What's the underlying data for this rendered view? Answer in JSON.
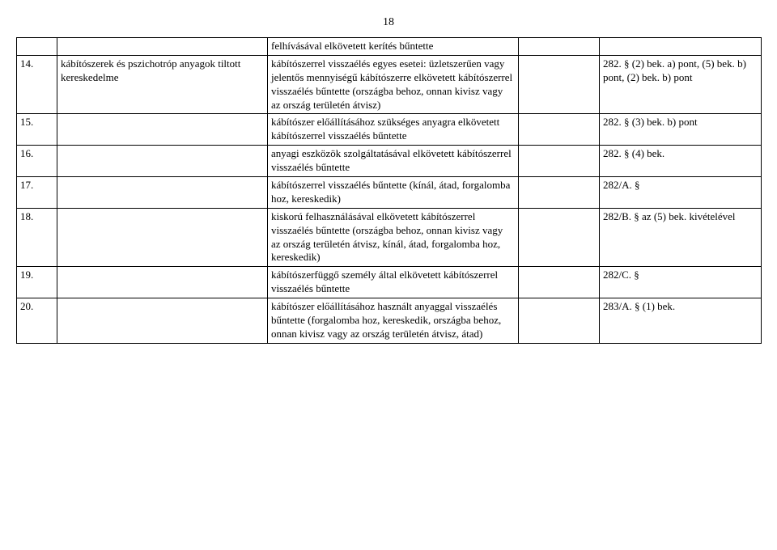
{
  "page_number": "18",
  "rows": [
    {
      "num": "",
      "title": "",
      "main": "felhívásával elkövetett kerítés bűntette",
      "mid": "",
      "ref": ""
    },
    {
      "num": "14.",
      "title": "kábítószerek és pszichotróp anyagok tiltott kereskedelme",
      "main": "kábítószerrel visszaélés egyes esetei:\n\nüzletszerűen vagy jelentős mennyiségű kábítószerre elkövetett kábítószerrel visszaélés bűntette (országba behoz, onnan kivisz vagy az ország területén átvisz)",
      "mid": "",
      "ref": "282. § (2) bek. a) pont, (5) bek. b) pont, (2) bek. b) pont"
    },
    {
      "num": "15.",
      "title": "",
      "main": "kábítószer előállításához szükséges anyagra elkövetett kábítószerrel visszaélés bűntette",
      "mid": "",
      "ref": "282. § (3) bek. b) pont"
    },
    {
      "num": "16.",
      "title": "",
      "main": "anyagi eszközök szolgáltatásával elkövetett kábítószerrel visszaélés bűntette",
      "mid": "",
      "ref": "282. § (4) bek."
    },
    {
      "num": "17.",
      "title": "",
      "main": "kábítószerrel visszaélés bűntette (kínál, átad, forgalomba hoz, kereskedik)",
      "mid": "",
      "ref": "282/A. §"
    },
    {
      "num": "18.",
      "title": "",
      "main": "kiskorú felhasználásával elkövetett kábítószerrel visszaélés bűntette (országba behoz, onnan kivisz vagy az ország területén átvisz, kínál, átad, forgalomba hoz, kereskedik)",
      "mid": "",
      "ref": "282/B. § az (5) bek. kivételével"
    },
    {
      "num": "19.",
      "title": "",
      "main": "kábítószerfüggő személy által elkövetett kábítószerrel visszaélés bűntette",
      "mid": "",
      "ref": "282/C. §"
    },
    {
      "num": "20.",
      "title": "",
      "main": "kábítószer előállításához használt anyaggal visszaélés bűntette (forgalomba hoz, kereskedik, országba behoz, onnan kivisz vagy az ország területén átvisz, átad)",
      "mid": "",
      "ref": "283/A. § (1) bek."
    }
  ]
}
